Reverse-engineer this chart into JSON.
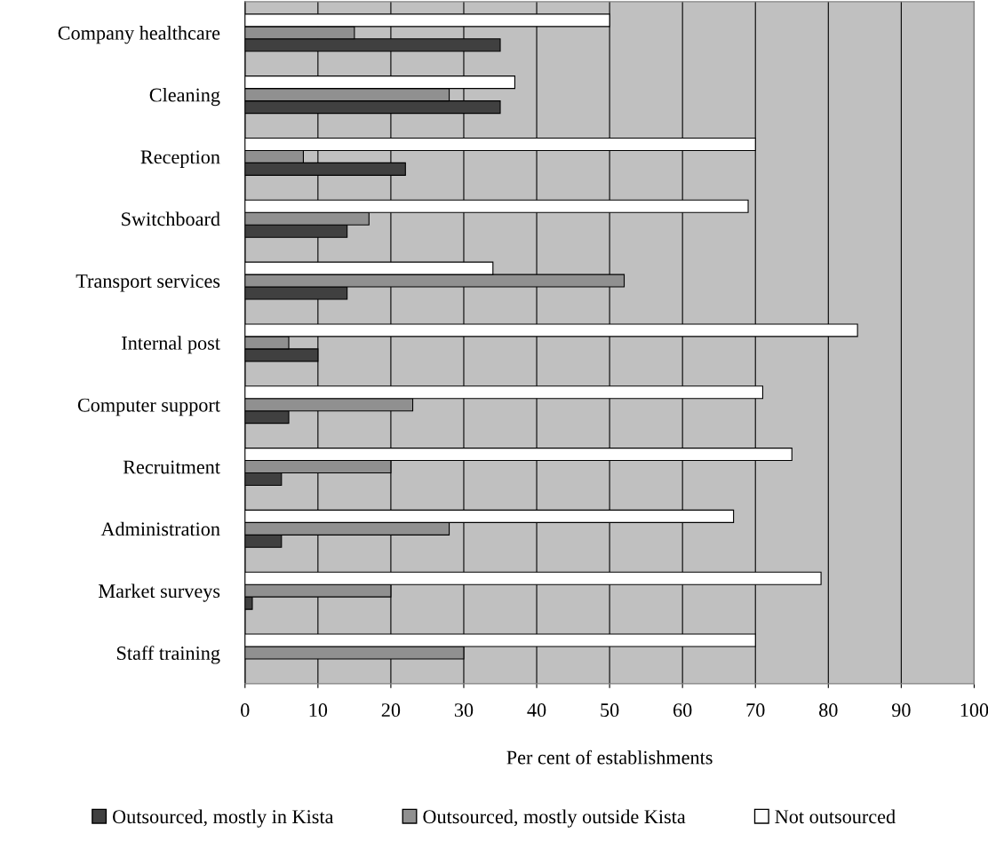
{
  "chart_data": {
    "type": "bar",
    "orientation": "horizontal",
    "xlabel": "Per cent of establishments",
    "categories": [
      "Company healthcare",
      "Cleaning",
      "Reception",
      "Switchboard",
      "Transport services",
      "Internal post",
      "Computer support",
      "Recruitment",
      "Administration",
      "Market surveys",
      "Staff training"
    ],
    "series": [
      {
        "name": "Outsourced, mostly in Kista",
        "color": "#404040",
        "values": [
          35,
          35,
          22,
          14,
          14,
          10,
          6,
          5,
          5,
          1,
          null
        ]
      },
      {
        "name": "Outsourced, mostly outside Kista",
        "color": "#909090",
        "values": [
          15,
          28,
          8,
          17,
          52,
          6,
          23,
          20,
          28,
          20,
          30
        ]
      },
      {
        "name": "Not outsourced",
        "color": "#ffffff",
        "values": [
          50,
          37,
          70,
          69,
          34,
          84,
          71,
          75,
          67,
          79,
          70
        ]
      }
    ],
    "xlim": [
      0,
      100
    ],
    "xticks": [
      0,
      10,
      20,
      30,
      40,
      50,
      60,
      70,
      80,
      90,
      100
    ],
    "grid": "x",
    "legend": "bottom"
  }
}
